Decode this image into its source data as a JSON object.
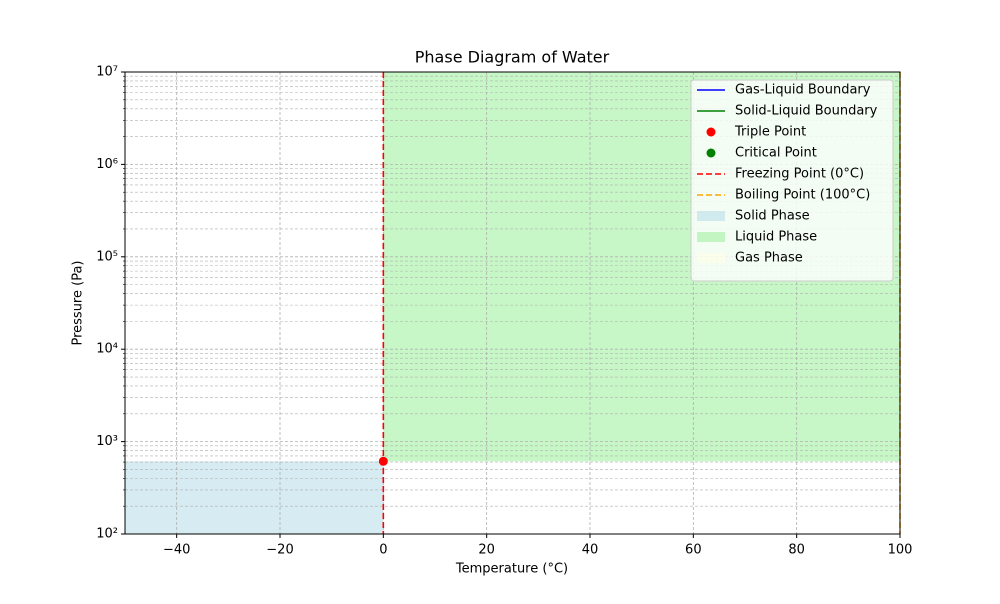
{
  "chart_data": {
    "type": "phase",
    "title": "Phase Diagram of Water",
    "xlabel": "Temperature (°C)",
    "ylabel": "Pressure (Pa)",
    "xlim": [
      -50,
      100
    ],
    "ylim": [
      100,
      10000000
    ],
    "yscale": "log",
    "grid": true,
    "legend": "upper right",
    "xticks": [
      {
        "value": -40,
        "label": "−40"
      },
      {
        "value": -20,
        "label": "−20"
      },
      0,
      20,
      40,
      60,
      80,
      100
    ],
    "yticks": [
      {
        "value": 100,
        "label": "10²"
      },
      {
        "value": 1000,
        "label": "10³"
      },
      {
        "value": 10000,
        "label": "10⁴"
      },
      {
        "value": 100000,
        "label": "10⁵"
      },
      {
        "value": 1000000,
        "label": "10⁶"
      },
      {
        "value": 10000000,
        "label": "10⁷"
      }
    ],
    "series": [
      {
        "name": "Gas-Liquid Boundary",
        "color": "#0000ff",
        "style": "line"
      },
      {
        "name": "Solid-Liquid Boundary",
        "color": "#008000",
        "style": "line"
      },
      {
        "name": "Triple Point",
        "color": "#ff0000",
        "style": "point",
        "x": 0,
        "y": 612
      },
      {
        "name": "Critical Point",
        "color": "#008000",
        "style": "point"
      },
      {
        "name": "Freezing Point (0°C)",
        "color": "#ff0000",
        "style": "vline",
        "x": 0
      },
      {
        "name": "Boiling Point (100°C)",
        "color": "#ffa500",
        "style": "vline",
        "x": 100
      },
      {
        "name": "Solid Phase",
        "color": "#add8e6",
        "style": "fill",
        "x": [
          -50,
          0
        ],
        "y": [
          100,
          612
        ]
      },
      {
        "name": "Liquid Phase",
        "color": "#90ee90",
        "style": "fill",
        "x": [
          0,
          100
        ],
        "y": [
          612,
          10000000
        ]
      },
      {
        "name": "Gas Phase",
        "color": "#ffffe0",
        "style": "fill"
      }
    ]
  }
}
